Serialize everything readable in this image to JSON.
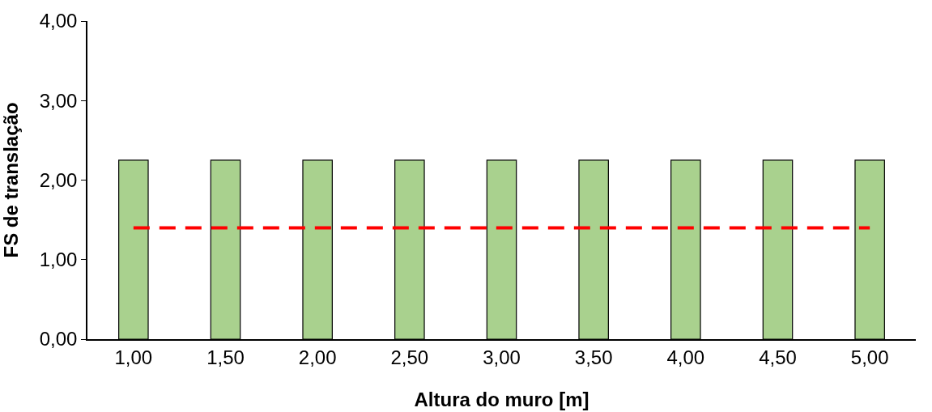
{
  "chart_data": {
    "type": "bar",
    "xlabel": "Altura do muro [m]",
    "ylabel": "FS de translação",
    "categories": [
      "1,00",
      "1,50",
      "2,00",
      "2,50",
      "3,00",
      "3,50",
      "4,00",
      "4,50",
      "5,00"
    ],
    "series": [
      {
        "color": "#a9d18e",
        "values": [
          2.25,
          2.25,
          2.25,
          2.25,
          2.25,
          2.25,
          2.25,
          2.25,
          2.25
        ]
      },
      {
        "type": "line",
        "color": "#ff0000",
        "line_style": "dashed",
        "marker": "none",
        "values": [
          1.4,
          1.4,
          1.4,
          1.4,
          1.4,
          1.4,
          1.4,
          1.4,
          1.4
        ]
      }
    ],
    "ylim": [
      0,
      4
    ],
    "yticks": [
      {
        "value": 0,
        "label": "0,00"
      },
      {
        "value": 1,
        "label": "1,00"
      },
      {
        "value": 2,
        "label": "2,00"
      },
      {
        "value": 3,
        "label": "3,00"
      },
      {
        "value": 4,
        "label": "4,00"
      }
    ],
    "grid": false,
    "legend": false
  }
}
